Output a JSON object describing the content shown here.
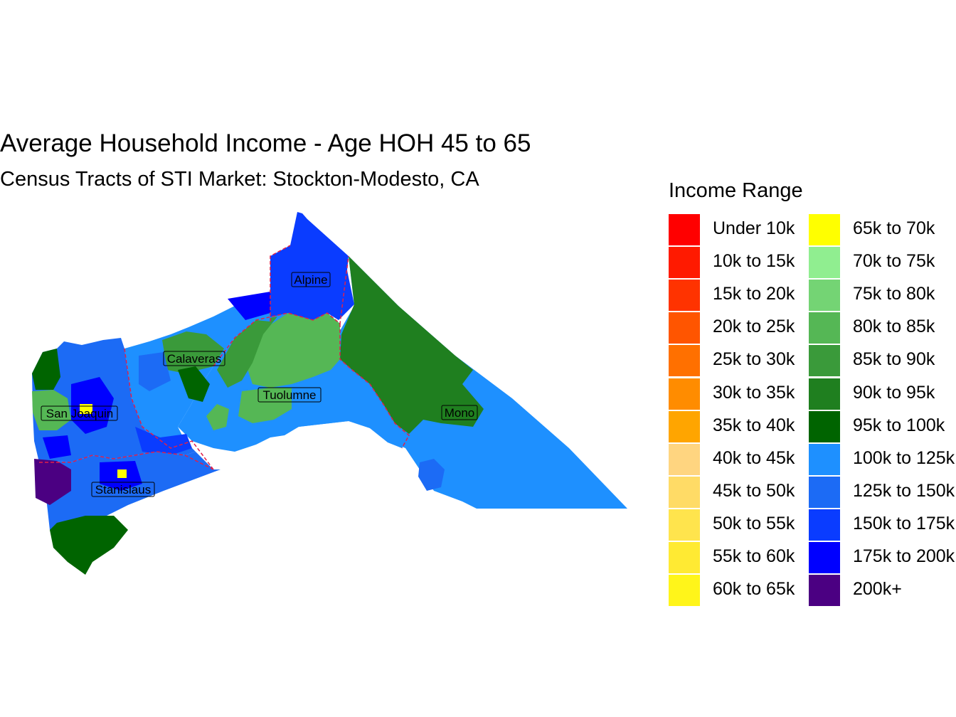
{
  "title": "Average Household Income - Age HOH 45 to 65",
  "subtitle": "Census Tracts of STI Market: Stockton-Modesto, CA",
  "legend": {
    "title": "Income Range",
    "items": [
      {
        "label": "Under 10k",
        "color": "#FF0000"
      },
      {
        "label": "10k to 15k",
        "color": "#FF1A00"
      },
      {
        "label": "15k to 20k",
        "color": "#FF3300"
      },
      {
        "label": "20k to 25k",
        "color": "#FF5500"
      },
      {
        "label": "25k to 30k",
        "color": "#FF7000"
      },
      {
        "label": "30k to 35k",
        "color": "#FF8C00"
      },
      {
        "label": "35k to 40k",
        "color": "#FFA500"
      },
      {
        "label": "40k to 45k",
        "color": "#FFD580"
      },
      {
        "label": "45k to 50k",
        "color": "#FFDB66"
      },
      {
        "label": "50k to 55k",
        "color": "#FFE44D"
      },
      {
        "label": "55k to 60k",
        "color": "#FFEA33"
      },
      {
        "label": "60k to 65k",
        "color": "#FFF51A"
      },
      {
        "label": "65k to 70k",
        "color": "#FFFF00"
      },
      {
        "label": "70k to 75k",
        "color": "#90EE90"
      },
      {
        "label": "75k to 80k",
        "color": "#74D474"
      },
      {
        "label": "80k to 85k",
        "color": "#55B755"
      },
      {
        "label": "85k to 90k",
        "color": "#3A9A3A"
      },
      {
        "label": "90k to 95k",
        "color": "#1F7F1F"
      },
      {
        "label": "95k to 100k",
        "color": "#006400"
      },
      {
        "label": "100k to 125k",
        "color": "#1E90FF"
      },
      {
        "label": "125k to 150k",
        "color": "#1C6BF5"
      },
      {
        "label": "150k to 175k",
        "color": "#0A3CFF"
      },
      {
        "label": "175k to 200k",
        "color": "#0000FF"
      },
      {
        "label": "200k+",
        "color": "#4B0082"
      }
    ]
  },
  "counties": [
    {
      "name": "Alpine"
    },
    {
      "name": "Calaveras"
    },
    {
      "name": "San Joaquin"
    },
    {
      "name": "Tuolumne"
    },
    {
      "name": "Mono"
    },
    {
      "name": "Stanislaus"
    }
  ]
}
